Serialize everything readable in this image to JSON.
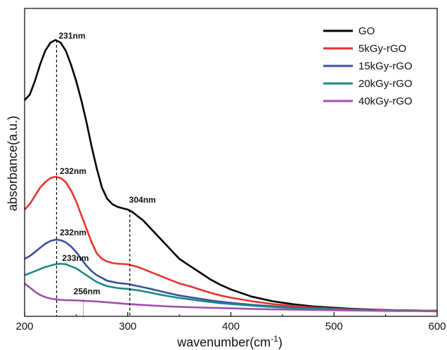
{
  "chart_data": {
    "type": "line",
    "xlabel": "wavenumber(cm",
    "xlabel_sup": "-1",
    "xlabel_suffix": ")",
    "ylabel": "absorbance(a.u.)",
    "xlim": [
      200,
      600
    ],
    "ylim": [
      0,
      1
    ],
    "x_ticks": [
      "200",
      "300",
      "400",
      "500",
      "600"
    ],
    "grid": false,
    "legend_position": "top-right",
    "series": [
      {
        "name": "GO",
        "color": "#000000",
        "x": [
          200,
          205,
          210,
          215,
          220,
          225,
          230,
          235,
          240,
          245,
          250,
          255,
          260,
          265,
          270,
          275,
          280,
          285,
          290,
          295,
          300,
          305,
          310,
          315,
          320,
          330,
          340,
          350,
          360,
          370,
          380,
          390,
          400,
          420,
          440,
          460,
          480,
          500,
          520,
          540,
          560,
          580,
          600
        ],
        "y": [
          0.78,
          0.8,
          0.85,
          0.91,
          0.96,
          0.99,
          1.0,
          0.99,
          0.96,
          0.91,
          0.85,
          0.78,
          0.7,
          0.61,
          0.53,
          0.46,
          0.42,
          0.4,
          0.39,
          0.385,
          0.38,
          0.37,
          0.355,
          0.34,
          0.32,
          0.28,
          0.24,
          0.2,
          0.175,
          0.15,
          0.125,
          0.105,
          0.088,
          0.062,
          0.045,
          0.034,
          0.026,
          0.021,
          0.017,
          0.014,
          0.012,
          0.011,
          0.01
        ]
      },
      {
        "name": "5kGy-rGO",
        "color": "#e8342b",
        "x": [
          200,
          205,
          210,
          215,
          220,
          225,
          230,
          235,
          240,
          245,
          250,
          255,
          260,
          265,
          270,
          275,
          280,
          285,
          290,
          300,
          310,
          320,
          330,
          340,
          350,
          360,
          370,
          380,
          390,
          400,
          420,
          440,
          460,
          480,
          500,
          520,
          540,
          560,
          580,
          600
        ],
        "y": [
          0.38,
          0.4,
          0.43,
          0.46,
          0.48,
          0.495,
          0.5,
          0.495,
          0.48,
          0.45,
          0.41,
          0.36,
          0.31,
          0.26,
          0.22,
          0.2,
          0.19,
          0.185,
          0.182,
          0.18,
          0.17,
          0.155,
          0.14,
          0.125,
          0.11,
          0.1,
          0.088,
          0.076,
          0.066,
          0.058,
          0.045,
          0.035,
          0.028,
          0.022,
          0.018,
          0.015,
          0.013,
          0.012,
          0.011,
          0.01
        ]
      },
      {
        "name": "15kGy-rGO",
        "color": "#3a4fa0",
        "x": [
          200,
          205,
          210,
          215,
          220,
          225,
          230,
          235,
          240,
          245,
          250,
          255,
          260,
          265,
          270,
          275,
          280,
          290,
          300,
          310,
          320,
          330,
          340,
          350,
          360,
          370,
          380,
          390,
          400,
          420,
          440,
          460,
          480,
          500,
          520,
          540,
          560,
          580,
          600
        ],
        "y": [
          0.2,
          0.21,
          0.225,
          0.24,
          0.255,
          0.265,
          0.27,
          0.268,
          0.26,
          0.245,
          0.225,
          0.2,
          0.175,
          0.155,
          0.14,
          0.13,
          0.12,
          0.112,
          0.108,
          0.1,
          0.092,
          0.083,
          0.074,
          0.066,
          0.06,
          0.054,
          0.048,
          0.043,
          0.039,
          0.032,
          0.027,
          0.022,
          0.019,
          0.016,
          0.014,
          0.012,
          0.011,
          0.01,
          0.009
        ]
      },
      {
        "name": "20kGy-rGO",
        "color": "#1a8a80",
        "x": [
          200,
          210,
          220,
          230,
          235,
          240,
          250,
          260,
          270,
          280,
          290,
          300,
          310,
          320,
          330,
          340,
          350,
          360,
          370,
          380,
          390,
          400,
          420,
          440,
          460,
          480,
          500,
          520,
          540,
          560,
          580,
          600
        ],
        "y": [
          0.14,
          0.155,
          0.17,
          0.18,
          0.182,
          0.18,
          0.165,
          0.14,
          0.115,
          0.1,
          0.093,
          0.09,
          0.085,
          0.078,
          0.07,
          0.063,
          0.057,
          0.052,
          0.047,
          0.042,
          0.038,
          0.035,
          0.029,
          0.024,
          0.02,
          0.017,
          0.015,
          0.013,
          0.012,
          0.011,
          0.01,
          0.009
        ]
      },
      {
        "name": "40kGy-rGO",
        "color": "#a24fae",
        "x": [
          200,
          205,
          210,
          215,
          220,
          225,
          230,
          235,
          240,
          250,
          260,
          270,
          280,
          290,
          300,
          320,
          340,
          360,
          380,
          400,
          420,
          440,
          460,
          480,
          500,
          520,
          540,
          560,
          580,
          600
        ],
        "y": [
          0.11,
          0.095,
          0.08,
          0.068,
          0.06,
          0.055,
          0.052,
          0.05,
          0.049,
          0.048,
          0.046,
          0.044,
          0.041,
          0.038,
          0.035,
          0.03,
          0.026,
          0.023,
          0.021,
          0.019,
          0.017,
          0.015,
          0.014,
          0.013,
          0.012,
          0.011,
          0.01,
          0.009,
          0.009,
          0.008
        ]
      }
    ],
    "annotations": [
      {
        "text": "231nm",
        "x": 231,
        "y": 1.0,
        "line": "dashed",
        "dx": 3,
        "dy": -2
      },
      {
        "text": "232nm",
        "x": 232,
        "y": 0.5,
        "line": "none",
        "dx": 3,
        "dy": -4
      },
      {
        "text": "304nm",
        "x": 302,
        "y": 0.38,
        "line": "dashed",
        "dx": -1,
        "dy": -10
      },
      {
        "text": "232nm",
        "x": 232,
        "y": 0.27,
        "line": "none",
        "dx": 3,
        "dy": -6
      },
      {
        "text": "233nm",
        "x": 233,
        "y": 0.182,
        "line": "none",
        "dx": 5,
        "dy": -4
      },
      {
        "text": "256nm",
        "x": 257,
        "y": 0.05,
        "line": "dotted",
        "dx": -14,
        "dy": -8
      }
    ]
  }
}
